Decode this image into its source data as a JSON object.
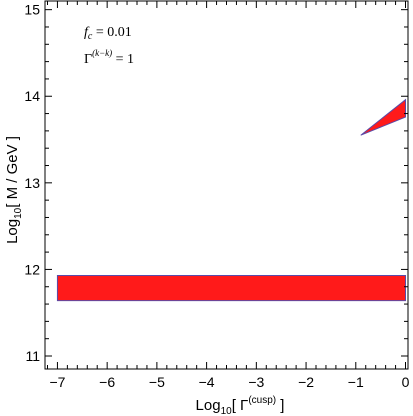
{
  "chart_data": {
    "type": "area",
    "x_axis": {
      "label_prefix": "Log",
      "label_sub": "10",
      "label_open": "[ Γ",
      "label_sup": "(cusp)",
      "label_close": " ]",
      "range": [
        -7.25,
        0.05
      ],
      "ticks": [
        -7,
        -6,
        -5,
        -4,
        -3,
        -2,
        -1,
        0
      ]
    },
    "y_axis": {
      "label_prefix": "Log",
      "label_sub": "10",
      "label_rest": "[ M / GeV ]",
      "range": [
        10.85,
        15.1
      ],
      "ticks": [
        11,
        12,
        13,
        14,
        15
      ]
    },
    "annotations": {
      "fc_symbol": "f",
      "fc_sub": "c",
      "fc_value": " = 0.01",
      "gamma_symbol": "Γ",
      "gamma_sup": "(k−k)",
      "gamma_value": " = 1"
    },
    "regions": [
      {
        "label": "band",
        "polygon": [
          [
            -7.0,
            11.64
          ],
          [
            0.0,
            11.64
          ],
          [
            0.0,
            11.93
          ],
          [
            -7.0,
            11.93
          ]
        ]
      },
      {
        "label": "wedge",
        "polygon": [
          [
            -0.9,
            13.55
          ],
          [
            0.0,
            13.96
          ],
          [
            0.0,
            13.76
          ]
        ]
      }
    ],
    "colors": {
      "fill": "#ff1a1a",
      "edge": "#5a4aa8"
    }
  }
}
